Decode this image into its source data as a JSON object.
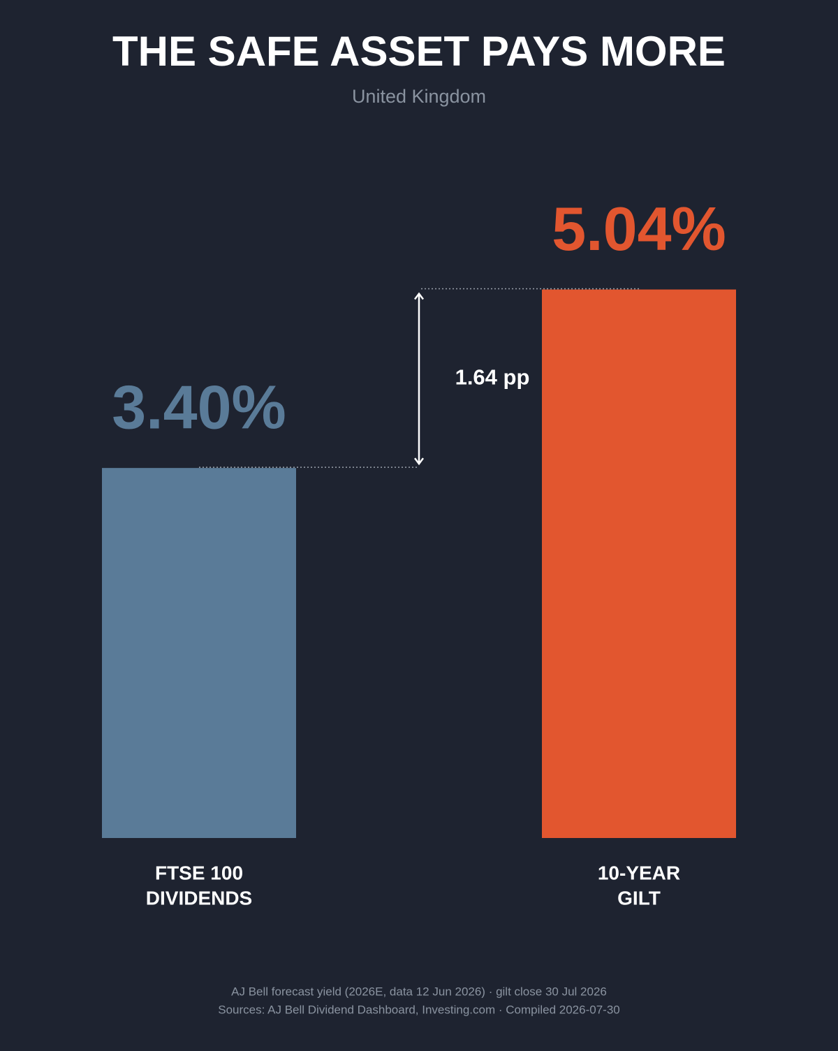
{
  "chart_data": {
    "type": "bar",
    "title": "THE SAFE ASSET PAYS MORE",
    "subtitle": "United Kingdom",
    "categories": [
      [
        "FTSE 100",
        "DIVIDENDS"
      ],
      [
        "10-YEAR",
        "GILT"
      ]
    ],
    "values": [
      3.4,
      5.04
    ],
    "value_labels": [
      "3.40%",
      "5.04%"
    ],
    "colors": [
      "#5a7b98",
      "#e2562f"
    ],
    "ylim": [
      0,
      7.7
    ],
    "annotation": {
      "value": 1.64,
      "label": "1.64 pp"
    },
    "footnotes": [
      "AJ Bell forecast yield (2026E, data 12 Jun 2026) · gilt close 30 Jul 2026",
      "Sources: AJ Bell Dividend Dashboard, Investing.com · Compiled 2026-07-30"
    ]
  }
}
